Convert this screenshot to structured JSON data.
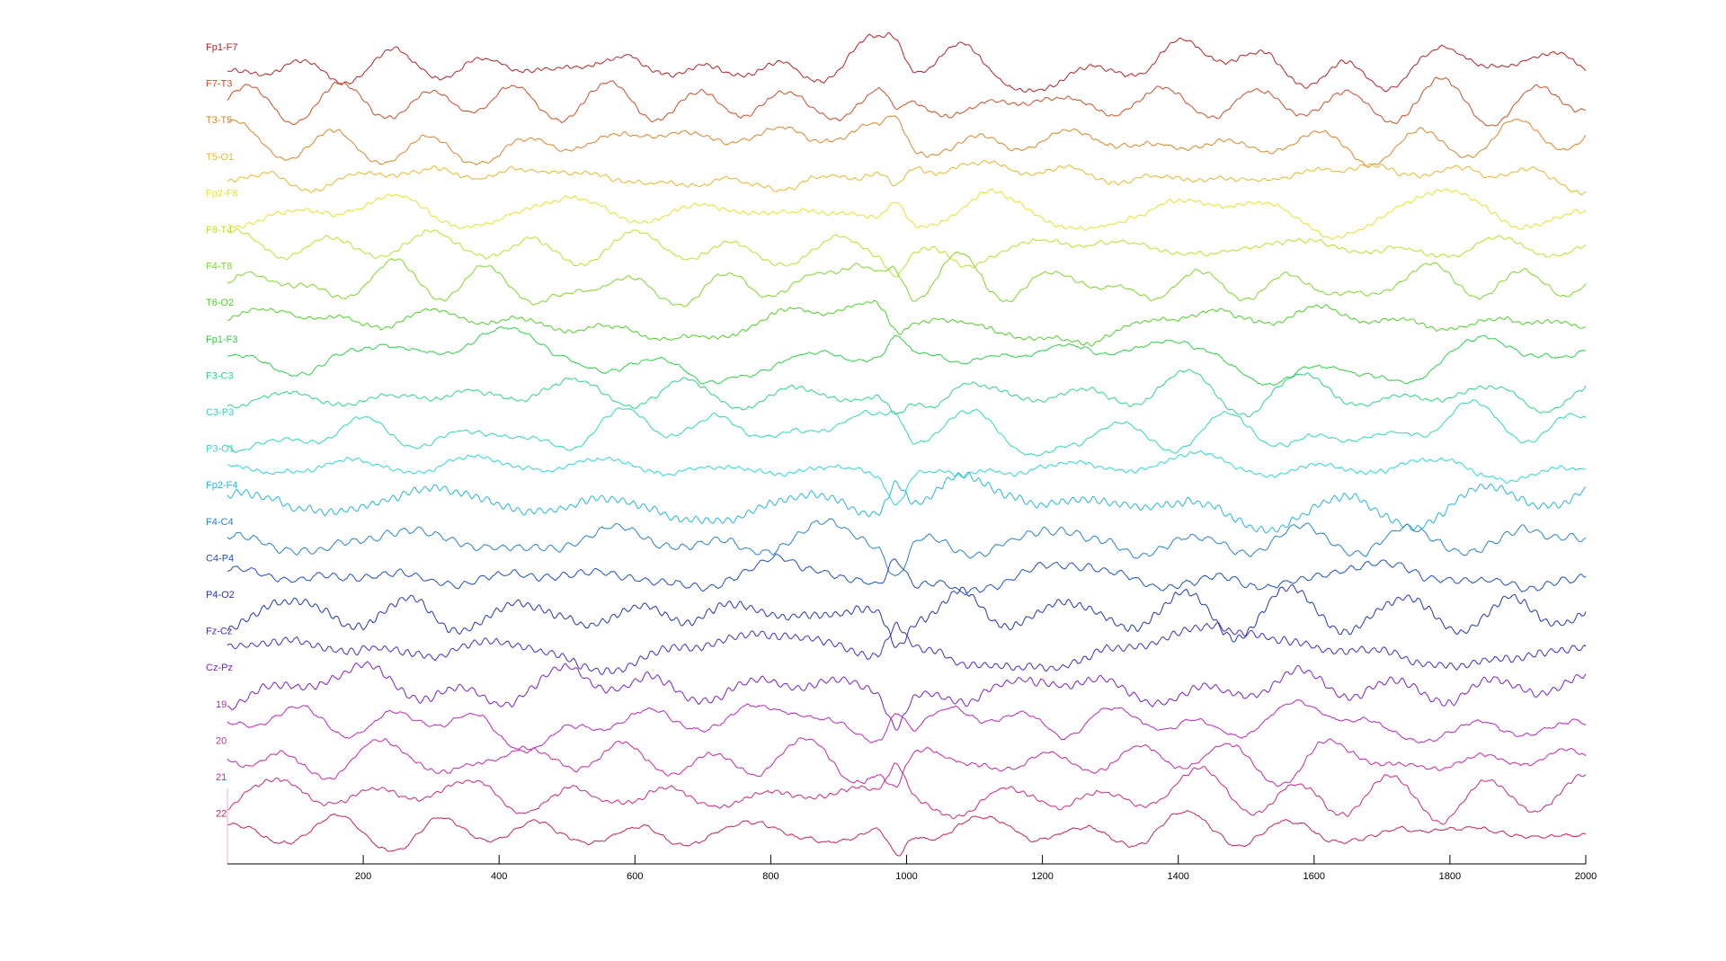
{
  "chart_data": {
    "type": "line",
    "title": "",
    "xlabel": "",
    "ylabel": "",
    "xlim": [
      0,
      2000
    ],
    "xticks": [
      "200",
      "400",
      "600",
      "800",
      "1000",
      "1200",
      "1400",
      "1600",
      "1800",
      "2000"
    ],
    "grid": false,
    "legend": "none",
    "series": [
      {
        "name": "Fp1-F7",
        "color": "#b3242b"
      },
      {
        "name": "F7-T3",
        "color": "#c9502a"
      },
      {
        "name": "T3-T5",
        "color": "#d9862a"
      },
      {
        "name": "T5-O1",
        "color": "#e3b82e"
      },
      {
        "name": "Fp2-F8",
        "color": "#e6e02c"
      },
      {
        "name": "F8-T4",
        "color": "#b9e02c"
      },
      {
        "name": "F4-T8",
        "color": "#7fd52a"
      },
      {
        "name": "T6-O2",
        "color": "#4fcf2a"
      },
      {
        "name": "Fp1-F3",
        "color": "#2fcf4a"
      },
      {
        "name": "F3-C3",
        "color": "#2fd38a"
      },
      {
        "name": "C3-P3",
        "color": "#2fd6b8"
      },
      {
        "name": "P3-O1",
        "color": "#2fd4d4"
      },
      {
        "name": "Fp2-F4",
        "color": "#27b4d8"
      },
      {
        "name": "F4-C4",
        "color": "#2a82c8"
      },
      {
        "name": "C4-P4",
        "color": "#1f4fc0"
      },
      {
        "name": "P4-O2",
        "color": "#2436b0"
      },
      {
        "name": "Fz-Cz",
        "color": "#4b2ac0"
      },
      {
        "name": "Cz-Pz",
        "color": "#7a22c8"
      },
      {
        "name": "19",
        "color": "#b82ab8"
      },
      {
        "name": "20",
        "color": "#c42aa0"
      },
      {
        "name": "21",
        "color": "#c82a80"
      },
      {
        "name": "22",
        "color": "#c2245a"
      }
    ]
  }
}
